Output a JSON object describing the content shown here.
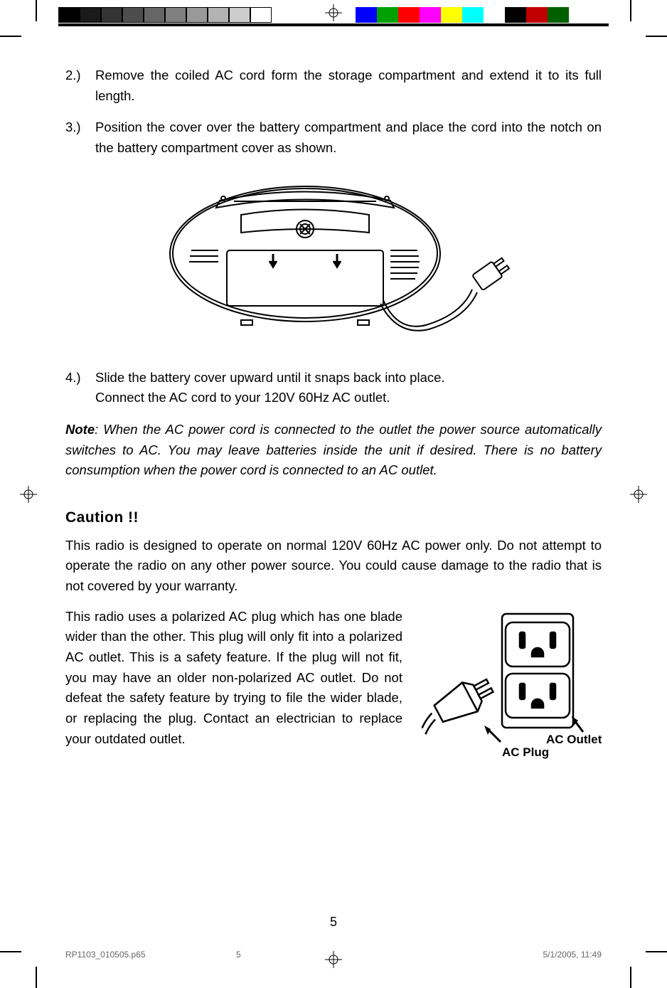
{
  "calibration": {
    "gray_swatches": [
      "#000000",
      "#1a1a1a",
      "#333333",
      "#4d4d4d",
      "#666666",
      "#808080",
      "#999999",
      "#b3b3b3",
      "#cccccc",
      "#ffffff"
    ],
    "color_swatches": [
      "#0000ff",
      "#00a000",
      "#ff0000",
      "#ff00ff",
      "#ffff00",
      "#00ffff",
      "#ffffff",
      "#000000",
      "#c00000",
      "#006000"
    ]
  },
  "steps": [
    {
      "num": "2.)",
      "text": "Remove the coiled AC cord form the storage compartment and extend it to its full length."
    },
    {
      "num": "3.)",
      "text": "Position the cover over the battery compartment and place the cord into the notch on the battery compartment cover as shown."
    },
    {
      "num": "4.)",
      "text_a": "Slide the battery cover upward until it snaps back into place.",
      "text_b": "Connect the AC cord to your 120V 60Hz AC outlet."
    }
  ],
  "note": {
    "label": "Note",
    "text": ": When the AC power cord is connected to the outlet the power source automatically switches to AC. You may leave batteries inside the unit if desired. There is no battery consumption when the power cord is connected to an AC outlet."
  },
  "caution": {
    "heading": "Caution !!",
    "p1": "This radio is designed to operate on normal 120V 60Hz AC power only. Do not attempt to operate the radio on any other power source. You could cause damage to the radio that is not covered by your warranty.",
    "p2": "This radio uses a polarized AC plug which has one blade wider than the other. This plug will only fit into a polarized AC outlet. This is a safety feature. If the plug will not fit, you may have an older non-polarized AC outlet. Do not defeat the safety feature by trying to file the wider blade, or replacing the plug. Contact an electrician to replace your outdated outlet."
  },
  "diagram_labels": {
    "ac_plug": "AC Plug",
    "ac_outlet": "AC Outlet"
  },
  "page_number": "5",
  "footer": {
    "filename": "RP1103_010505.p65",
    "page": "5",
    "datetime": "5/1/2005, 11:49"
  },
  "style": {
    "body_font_size_pt": 14,
    "heading_font_size_pt": 16,
    "text_color": "#000000",
    "background_color": "#ffffff",
    "line_stroke": "#000000",
    "line_width": 2,
    "label_font_weight": "bold"
  }
}
